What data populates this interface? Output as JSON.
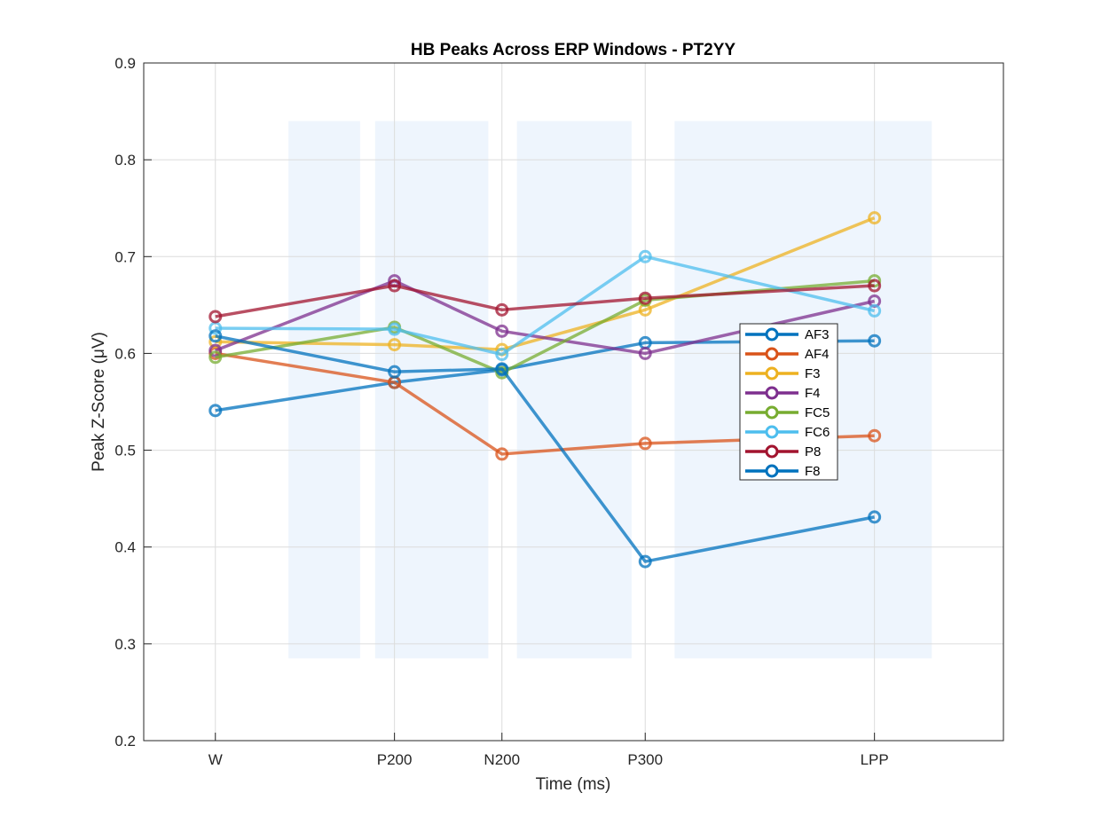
{
  "chart_data": {
    "type": "line",
    "title": "HB Peaks Across ERP Windows - PT2YY",
    "xlabel": "Time (ms)",
    "ylabel": "Peak Z-Score (μV)",
    "categories": [
      "W",
      "P200",
      "N200",
      "P300",
      "LPP"
    ],
    "x": [
      0,
      2.5,
      4,
      6,
      9.2
    ],
    "xlim": [
      -1,
      11
    ],
    "ylim": [
      0.2,
      0.9
    ],
    "yticks": [
      0.2,
      0.3,
      0.4,
      0.5,
      0.6,
      0.7,
      0.8,
      0.9
    ],
    "ytick_labels": [
      "0.2",
      "0.3",
      "0.4",
      "0.5",
      "0.6",
      "0.7",
      "0.8",
      "0.9"
    ],
    "grid": true,
    "legend_position": "center-right",
    "shaded_windows": {
      "color": "#eef5fd",
      "y_range": [
        0.285,
        0.84
      ],
      "x_ranges": [
        [
          1.02,
          2.02
        ],
        [
          2.23,
          3.81
        ],
        [
          4.21,
          5.81
        ],
        [
          6.41,
          10.0
        ]
      ]
    },
    "series": [
      {
        "name": "AF3",
        "color": "#0072BD",
        "values": [
          0.541,
          0.57,
          0.583,
          0.611,
          0.613
        ]
      },
      {
        "name": "AF4",
        "color": "#D95319",
        "values": [
          0.6,
          0.57,
          0.496,
          0.507,
          0.515
        ]
      },
      {
        "name": "F3",
        "color": "#EDB120",
        "values": [
          0.612,
          0.609,
          0.604,
          0.645,
          0.74
        ]
      },
      {
        "name": "F4",
        "color": "#7E2F8E",
        "values": [
          0.603,
          0.675,
          0.623,
          0.6,
          0.654
        ]
      },
      {
        "name": "FC5",
        "color": "#77AC30",
        "values": [
          0.596,
          0.627,
          0.58,
          0.655,
          0.675
        ]
      },
      {
        "name": "FC6",
        "color": "#4DBEEE",
        "values": [
          0.626,
          0.625,
          0.599,
          0.7,
          0.644
        ]
      },
      {
        "name": "P8",
        "color": "#A2142F",
        "values": [
          0.638,
          0.67,
          0.645,
          0.657,
          0.67
        ]
      },
      {
        "name": "F8",
        "color": "#0072BD",
        "values": [
          0.618,
          0.581,
          0.584,
          0.385,
          0.431
        ]
      }
    ]
  }
}
